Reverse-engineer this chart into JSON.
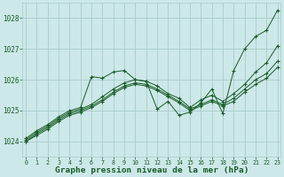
{
  "background_color": "#cce8e8",
  "grid_color": "#aacccc",
  "line_color": "#1a5c28",
  "title": "Graphe pression niveau de la mer (hPa)",
  "x_ticks": [
    0,
    1,
    2,
    3,
    4,
    5,
    6,
    7,
    8,
    9,
    10,
    11,
    12,
    13,
    14,
    15,
    16,
    17,
    18,
    19,
    20,
    21,
    22,
    23
  ],
  "ylim": [
    1023.5,
    1028.5
  ],
  "yticks": [
    1024,
    1025,
    1026,
    1027,
    1028
  ],
  "series": [
    [
      1024.1,
      1024.35,
      1024.55,
      1024.8,
      1025.0,
      1025.1,
      1026.1,
      1026.05,
      1026.25,
      1026.3,
      1026.0,
      1025.95,
      1025.05,
      1025.3,
      1024.85,
      1024.95,
      1025.25,
      1025.7,
      1024.9,
      1026.3,
      1027.0,
      1027.4,
      1027.6,
      1028.25
    ],
    [
      1024.05,
      1024.3,
      1024.5,
      1024.75,
      1024.95,
      1025.05,
      1025.2,
      1025.45,
      1025.7,
      1025.9,
      1026.0,
      1025.95,
      1025.8,
      1025.55,
      1025.4,
      1025.1,
      1025.35,
      1025.5,
      1025.3,
      1025.55,
      1025.85,
      1026.25,
      1026.55,
      1027.1
    ],
    [
      1024.0,
      1024.25,
      1024.45,
      1024.7,
      1024.9,
      1025.0,
      1025.15,
      1025.35,
      1025.6,
      1025.8,
      1025.9,
      1025.85,
      1025.7,
      1025.5,
      1025.3,
      1025.05,
      1025.2,
      1025.35,
      1025.2,
      1025.4,
      1025.7,
      1026.0,
      1026.2,
      1026.6
    ],
    [
      1024.0,
      1024.2,
      1024.4,
      1024.65,
      1024.85,
      1024.95,
      1025.1,
      1025.3,
      1025.55,
      1025.75,
      1025.85,
      1025.8,
      1025.65,
      1025.45,
      1025.25,
      1025.0,
      1025.15,
      1025.3,
      1025.15,
      1025.3,
      1025.6,
      1025.85,
      1026.05,
      1026.4
    ]
  ]
}
